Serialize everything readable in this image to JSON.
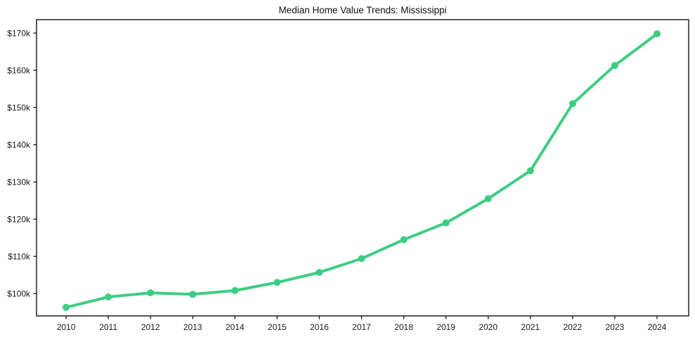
{
  "figure": {
    "background_color": "#ffffff",
    "frame_color": "#000000"
  },
  "chart_data": {
    "type": "line",
    "title": "Median Home Value Trends: Mississippi",
    "xlabel": "",
    "ylabel": "",
    "x": [
      2010,
      2011,
      2012,
      2013,
      2014,
      2015,
      2016,
      2017,
      2018,
      2019,
      2020,
      2021,
      2022,
      2023,
      2024
    ],
    "series": [
      {
        "name": "Median Home Value",
        "values": [
          96.3,
          99.1,
          100.2,
          99.8,
          100.8,
          103.0,
          105.7,
          109.4,
          114.5,
          119.0,
          125.5,
          133.0,
          151.0,
          161.3,
          169.8
        ],
        "unit": "thousand USD",
        "line_color": "#3dcd82",
        "line_width": 4,
        "marker": "circle",
        "marker_radius": 5
      }
    ],
    "xlim": [
      2009.3,
      2024.75
    ],
    "ylim": [
      94,
      173.6
    ],
    "xticks": [
      2010,
      2011,
      2012,
      2013,
      2014,
      2015,
      2016,
      2017,
      2018,
      2019,
      2020,
      2021,
      2022,
      2023,
      2024
    ],
    "xtick_labels": [
      "2010",
      "2011",
      "2012",
      "2013",
      "2014",
      "2015",
      "2016",
      "2017",
      "2018",
      "2019",
      "2020",
      "2021",
      "2022",
      "2023",
      "2024"
    ],
    "yticks": [
      100,
      110,
      120,
      130,
      140,
      150,
      160,
      170
    ],
    "ytick_labels": [
      "$100k",
      "$110k",
      "$120k",
      "$130k",
      "$140k",
      "$150k",
      "$160k",
      "$170k"
    ],
    "grid": false,
    "legend": null
  }
}
